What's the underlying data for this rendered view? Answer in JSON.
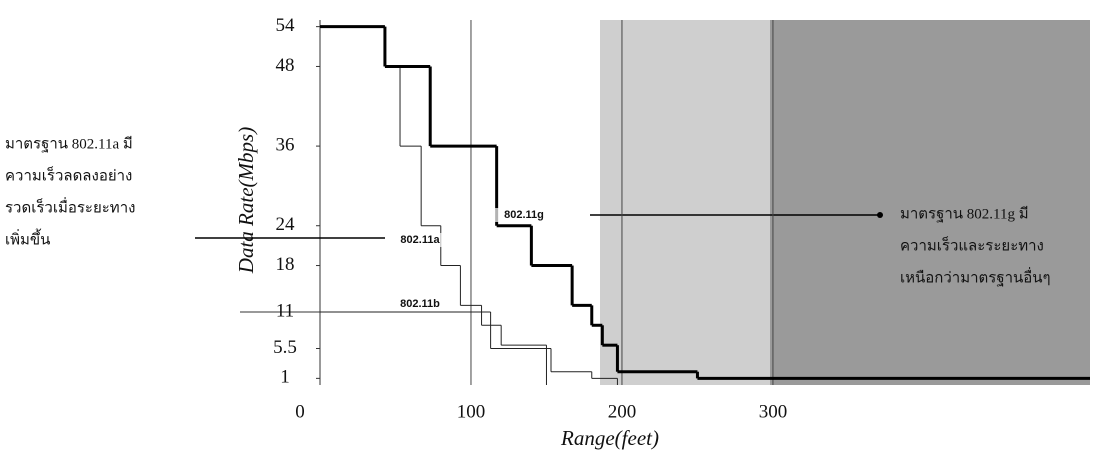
{
  "chart_data": {
    "type": "step",
    "ylabel": "Data Rate(Mbps)",
    "xlabel": "Range(feet)",
    "xlim": [
      0,
      510
    ],
    "xticks": [
      0,
      100,
      200,
      300
    ],
    "ylim": [
      0,
      55
    ],
    "yticks": [
      1,
      5.5,
      11,
      18,
      24,
      36,
      48,
      54
    ],
    "series": [
      {
        "name": "802.11a",
        "color": "#222222",
        "line_width": 1,
        "x": [
          0,
          43,
          53,
          67,
          80,
          93,
          107,
          120,
          150
        ],
        "values": [
          54,
          48,
          36,
          24,
          18,
          12,
          9,
          6,
          0
        ]
      },
      {
        "name": "802.11b",
        "color": "#222222",
        "line_width": 1,
        "x": [
          0,
          113,
          153,
          180,
          197
        ],
        "values": [
          11,
          5.5,
          2,
          1,
          0
        ]
      },
      {
        "name": "802.11g",
        "color": "#000000",
        "line_width": 3,
        "x": [
          0,
          43,
          73,
          117,
          140,
          167,
          180,
          187,
          197,
          250,
          510
        ],
        "values": [
          54,
          48,
          36,
          24,
          18,
          12,
          9,
          6,
          2,
          1,
          1
        ]
      }
    ],
    "annotations": [
      [
        "มาตรฐาน 802.11a มี",
        "ความเร็วลดลงอย่าง",
        "รวดเร็วเมื่อระยะทาง",
        "เพิ่มขึ้น"
      ],
      [
        "มาตรฐาน 802.11g มี",
        "ความเร็วและระยะทาง",
        "เหนือกว่ามาตรฐานอื่นๆ"
      ]
    ]
  }
}
